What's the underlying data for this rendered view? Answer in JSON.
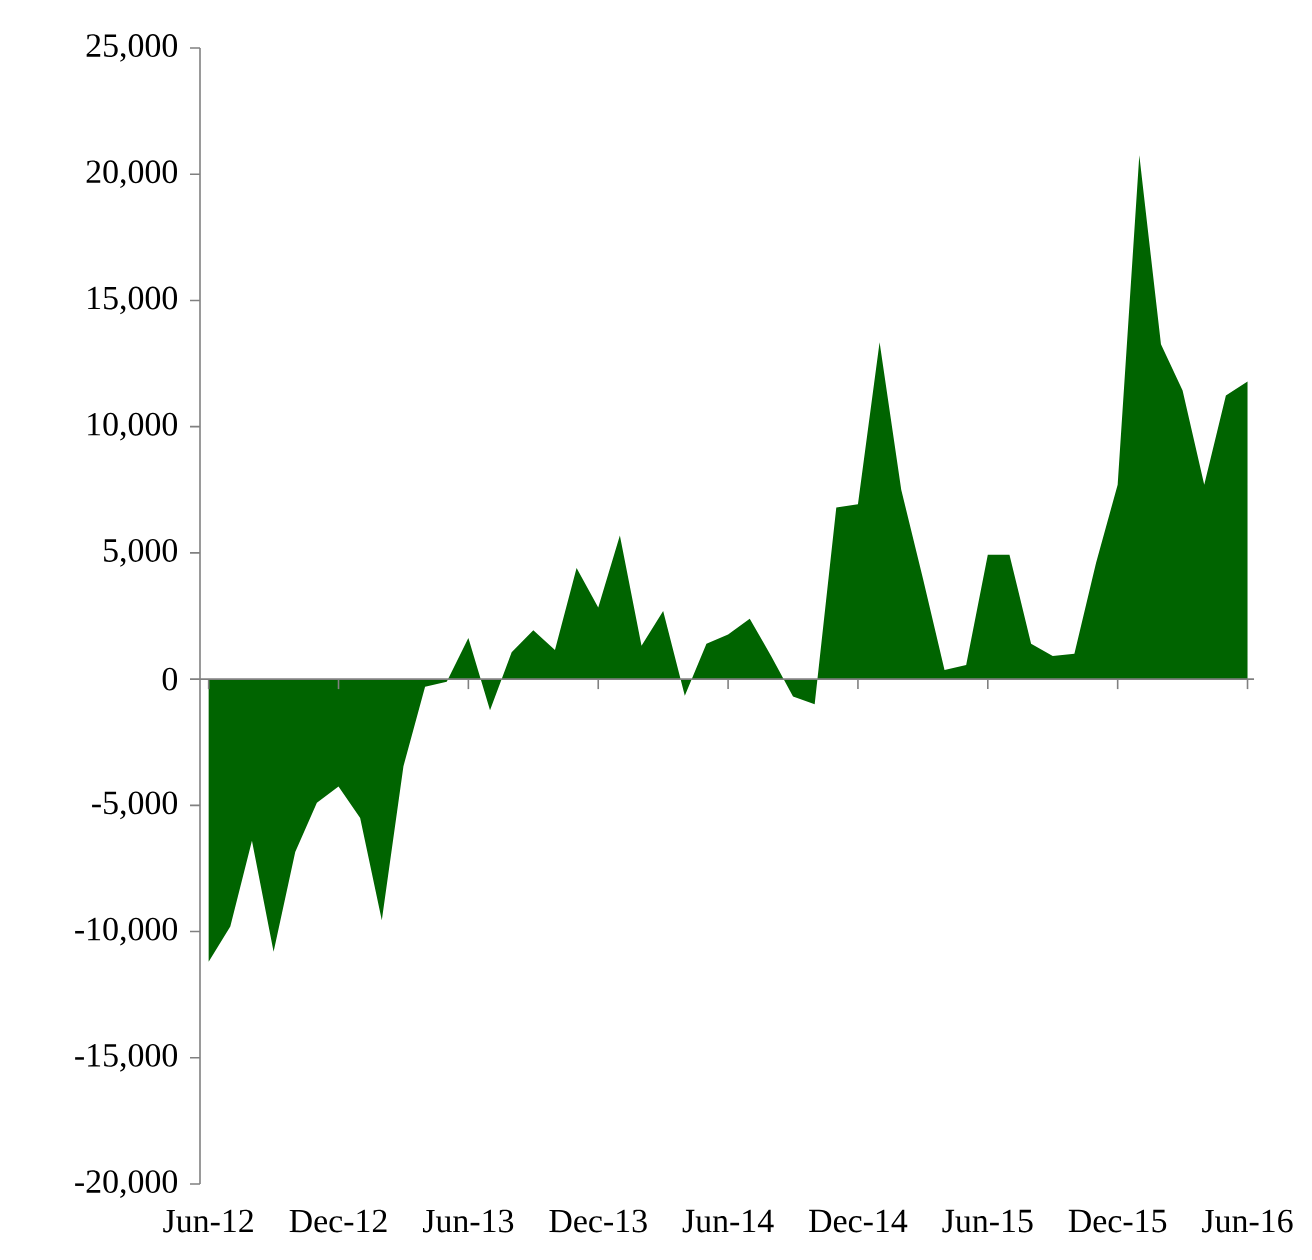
{
  "chart_data": {
    "type": "area",
    "color": "#006400",
    "categories": [
      "Jun-12",
      null,
      null,
      null,
      null,
      null,
      "Dec-12",
      null,
      null,
      null,
      null,
      null,
      "Jun-13",
      null,
      null,
      null,
      null,
      null,
      "Dec-13",
      null,
      null,
      null,
      null,
      null,
      "Jun-14",
      null,
      null,
      null,
      null,
      null,
      "Dec-14",
      null,
      null,
      null,
      null,
      null,
      "Jun-15",
      null,
      null,
      null,
      null,
      null,
      "Dec-15",
      null,
      null,
      null,
      null,
      null,
      "Jun-16"
    ],
    "values": [
      -11200,
      -9800,
      -6400,
      -10800,
      -6850,
      -4900,
      -4250,
      -5500,
      -9550,
      -3450,
      -300,
      -100,
      1630,
      -1230,
      1060,
      1940,
      1150,
      4400,
      2840,
      5690,
      1320,
      2700,
      -660,
      1400,
      1770,
      2390,
      900,
      -690,
      -1000,
      6800,
      6930,
      13340,
      7500,
      4000,
      360,
      560,
      4930,
      4930,
      1400,
      920,
      1000,
      4600,
      7700,
      20750,
      13260,
      11430,
      7700,
      11230,
      11790
    ],
    "ylim": [
      -20000,
      25000
    ],
    "yticks": [
      {
        "value": -20000,
        "label": "-20,000"
      },
      {
        "value": -15000,
        "label": "-15,000"
      },
      {
        "value": -10000,
        "label": "-10,000"
      },
      {
        "value": -5000,
        "label": "-5,000"
      },
      {
        "value": 0,
        "label": "0"
      },
      {
        "value": 5000,
        "label": "5,000"
      },
      {
        "value": 10000,
        "label": "10,000"
      },
      {
        "value": 15000,
        "label": "15,000"
      },
      {
        "value": 20000,
        "label": "20,000"
      },
      {
        "value": 25000,
        "label": "25,000"
      }
    ]
  }
}
